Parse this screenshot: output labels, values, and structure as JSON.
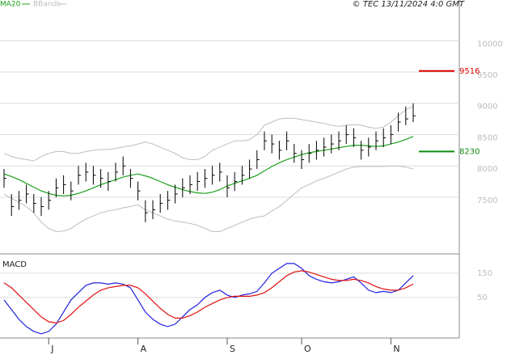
{
  "chart_data": [
    {
      "type": "stock",
      "source": "© TEC 13/11/2024 4:0 GMT",
      "categories": [
        null,
        null,
        null,
        null,
        null,
        null,
        "J",
        null,
        null,
        null,
        null,
        null,
        null,
        null,
        null,
        null,
        null,
        null,
        "A",
        null,
        null,
        null,
        null,
        null,
        null,
        null,
        null,
        null,
        null,
        null,
        "S",
        null,
        null,
        null,
        null,
        null,
        null,
        null,
        null,
        null,
        "O",
        null,
        null,
        null,
        null,
        null,
        null,
        null,
        null,
        null,
        null,
        null,
        "N",
        null,
        null,
        null
      ],
      "high": [
        7950,
        7550,
        7600,
        7700,
        7550,
        7500,
        7600,
        7800,
        7850,
        7750,
        8000,
        8050,
        8000,
        7950,
        7900,
        8050,
        8150,
        7950,
        7750,
        7450,
        7450,
        7550,
        7600,
        7700,
        7800,
        7850,
        7900,
        7950,
        8000,
        8050,
        7850,
        7900,
        8000,
        8100,
        8250,
        8550,
        8500,
        8400,
        8550,
        8350,
        8250,
        8350,
        8400,
        8450,
        8500,
        8550,
        8650,
        8600,
        8400,
        8450,
        8550,
        8600,
        8650,
        8850,
        8950,
        9000
      ],
      "low": [
        7650,
        7200,
        7300,
        7400,
        7250,
        7200,
        7300,
        7500,
        7550,
        7450,
        7700,
        7750,
        7700,
        7650,
        7600,
        7750,
        7850,
        7650,
        7450,
        7100,
        7150,
        7250,
        7300,
        7400,
        7500,
        7550,
        7600,
        7650,
        7700,
        7750,
        7500,
        7600,
        7700,
        7800,
        7950,
        8250,
        8200,
        8100,
        8250,
        8050,
        7950,
        8050,
        8100,
        8150,
        8200,
        8250,
        8350,
        8300,
        8100,
        8150,
        8250,
        8300,
        8350,
        8550,
        8650,
        8700
      ],
      "close": [
        7800,
        7350,
        7450,
        7550,
        7400,
        7350,
        7450,
        7650,
        7700,
        7600,
        7850,
        7900,
        7850,
        7800,
        7750,
        7900,
        8000,
        7800,
        7600,
        7250,
        7300,
        7400,
        7450,
        7550,
        7650,
        7700,
        7750,
        7800,
        7850,
        7900,
        7650,
        7750,
        7850,
        7950,
        8100,
        8400,
        8350,
        8250,
        8400,
        8200,
        8100,
        8200,
        8250,
        8300,
        8350,
        8400,
        8500,
        8450,
        8250,
        8300,
        8400,
        8450,
        8500,
        8700,
        8750,
        8800
      ],
      "series": [
        {
          "name": "MA20",
          "color": "#1aa01a",
          "values": [
            7870,
            7830,
            7780,
            7720,
            7660,
            7600,
            7560,
            7530,
            7520,
            7530,
            7560,
            7600,
            7650,
            7700,
            7740,
            7780,
            7820,
            7850,
            7870,
            7840,
            7800,
            7750,
            7700,
            7660,
            7620,
            7590,
            7570,
            7560,
            7580,
            7620,
            7680,
            7720,
            7760,
            7800,
            7850,
            7920,
            7990,
            8050,
            8100,
            8140,
            8180,
            8210,
            8230,
            8250,
            8270,
            8290,
            8310,
            8330,
            8330,
            8320,
            8310,
            8320,
            8350,
            8380,
            8420,
            8470
          ]
        },
        {
          "name": "BBands",
          "color": "#bdbdbd",
          "upper": [
            8200,
            8150,
            8120,
            8100,
            8080,
            8150,
            8200,
            8230,
            8230,
            8200,
            8200,
            8230,
            8250,
            8260,
            8260,
            8280,
            8300,
            8320,
            8350,
            8380,
            8350,
            8300,
            8250,
            8200,
            8130,
            8100,
            8100,
            8150,
            8250,
            8300,
            8350,
            8400,
            8400,
            8420,
            8500,
            8650,
            8700,
            8750,
            8760,
            8760,
            8740,
            8720,
            8700,
            8680,
            8650,
            8630,
            8650,
            8660,
            8650,
            8620,
            8600,
            8620,
            8700,
            8800,
            8900,
            8950
          ],
          "lower": [
            7550,
            7480,
            7420,
            7350,
            7250,
            7100,
            7000,
            6950,
            6960,
            7000,
            7080,
            7150,
            7200,
            7250,
            7280,
            7300,
            7330,
            7350,
            7380,
            7300,
            7250,
            7200,
            7150,
            7120,
            7100,
            7080,
            7050,
            7000,
            6950,
            6950,
            7000,
            7050,
            7100,
            7150,
            7180,
            7200,
            7280,
            7350,
            7450,
            7550,
            7650,
            7700,
            7760,
            7800,
            7850,
            7900,
            7950,
            7980,
            7990,
            7990,
            7990,
            7990,
            8000,
            8000,
            7980,
            7950
          ]
        }
      ],
      "levels": [
        {
          "value": 9516,
          "color": "#e00000"
        },
        {
          "value": 8230,
          "color": "#108a10"
        }
      ],
      "ylim": [
        6620,
        10650
      ],
      "yticks": [
        7500,
        8000,
        8500,
        9000,
        9500,
        10000
      ],
      "grid": true
    },
    {
      "type": "macd",
      "title": "MACD",
      "series": [
        {
          "color": "#2020e0",
          "values": [
            40,
            0,
            -40,
            -70,
            -90,
            -100,
            -90,
            -60,
            -10,
            40,
            70,
            100,
            110,
            110,
            105,
            110,
            105,
            90,
            40,
            -10,
            -40,
            -60,
            -70,
            -60,
            -30,
            0,
            20,
            50,
            70,
            80,
            60,
            50,
            60,
            65,
            75,
            110,
            150,
            170,
            190,
            190,
            170,
            140,
            125,
            115,
            110,
            115,
            125,
            135,
            110,
            80,
            70,
            75,
            70,
            80,
            110,
            140
          ]
        },
        {
          "color": "#e01010",
          "values": [
            110,
            90,
            60,
            30,
            0,
            -30,
            -50,
            -55,
            -45,
            -20,
            10,
            35,
            60,
            80,
            90,
            95,
            100,
            100,
            90,
            65,
            35,
            5,
            -20,
            -35,
            -35,
            -25,
            -10,
            10,
            25,
            40,
            50,
            55,
            55,
            55,
            60,
            70,
            90,
            115,
            140,
            155,
            160,
            155,
            145,
            135,
            125,
            120,
            120,
            125,
            120,
            110,
            95,
            85,
            80,
            80,
            90,
            105
          ]
        }
      ],
      "ylim": [
        -117,
        223
      ],
      "yticks": [
        50,
        150
      ],
      "grid": true
    }
  ]
}
